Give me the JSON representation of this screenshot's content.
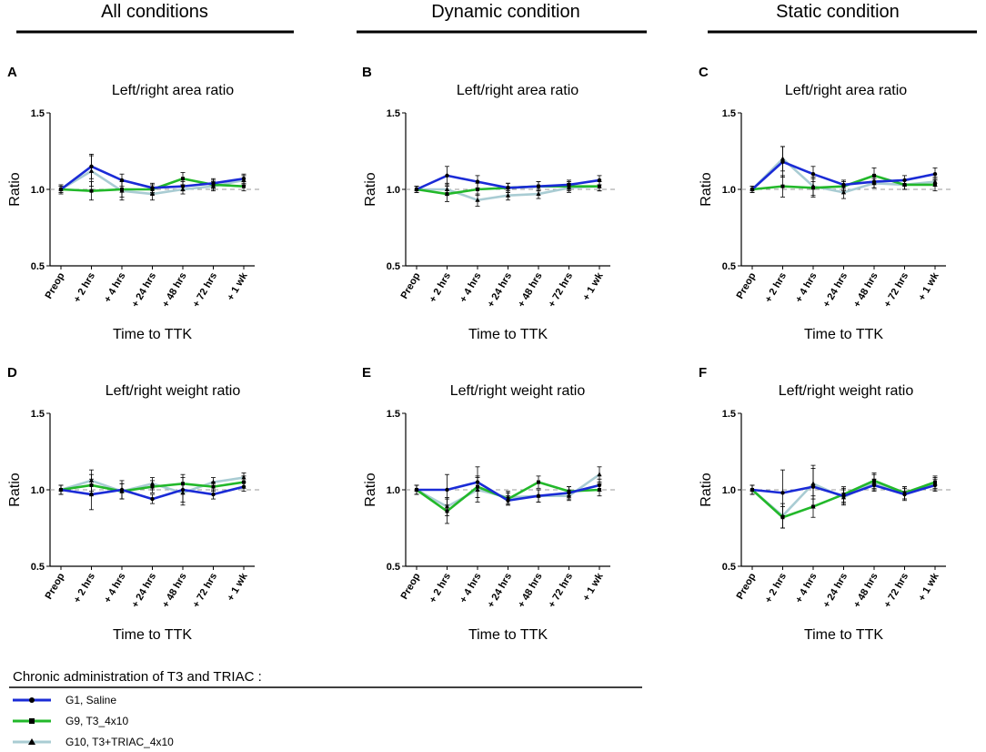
{
  "columns": [
    {
      "title": "All conditions"
    },
    {
      "title": "Dynamic condition"
    },
    {
      "title": "Static condition"
    }
  ],
  "legend": {
    "title": "Chronic administration of T3 and TRIAC :",
    "items": [
      {
        "label": "G1, Saline",
        "color": "#1a2bd6",
        "marker": "circle"
      },
      {
        "label": "G9, T3_4x10",
        "color": "#22b82a",
        "marker": "square"
      },
      {
        "label": "G10, T3+TRIAC_4x10",
        "color": "#a9ccd3",
        "marker": "triangle"
      }
    ]
  },
  "chart_data": [
    {
      "type": "line",
      "panel": "A",
      "title": "Left/right area ratio",
      "xlabel": "Time to TTK",
      "ylabel": "Ratio",
      "categories": [
        "Preop",
        "+ 2 hrs",
        "+ 4 hrs",
        "+ 24 hrs",
        "+ 48 hrs",
        "+ 72 hrs",
        "+ 1 wk"
      ],
      "ylim": [
        0.5,
        1.5
      ],
      "yticks": [
        "0.5",
        "1.0",
        "1.5"
      ],
      "reference_line": 1.0,
      "series": [
        {
          "name": "G1, Saline",
          "values": [
            1.0,
            1.15,
            1.06,
            1.01,
            1.02,
            1.04,
            1.07
          ],
          "errors": [
            0.03,
            0.08,
            0.04,
            0.03,
            0.03,
            0.03,
            0.03
          ]
        },
        {
          "name": "G9, T3_4x10",
          "values": [
            1.0,
            0.99,
            1.0,
            1.0,
            1.07,
            1.03,
            1.02
          ],
          "errors": [
            0.02,
            0.06,
            0.05,
            0.03,
            0.04,
            0.03,
            0.03
          ]
        },
        {
          "name": "G10, T3+TRIAC_4x10",
          "values": [
            1.0,
            1.12,
            0.99,
            0.97,
            1.0,
            1.02,
            1.06
          ],
          "errors": [
            0.02,
            0.1,
            0.06,
            0.04,
            0.03,
            0.03,
            0.03
          ]
        }
      ]
    },
    {
      "type": "line",
      "panel": "B",
      "title": "Left/right area ratio",
      "xlabel": "Time to TTK",
      "ylabel": "Ratio",
      "categories": [
        "Preop",
        "+ 2 hrs",
        "+ 4 hrs",
        "+ 24 hrs",
        "+ 48 hrs",
        "+ 72 hrs",
        "+ 1 wk"
      ],
      "ylim": [
        0.5,
        1.5
      ],
      "yticks": [
        "0.5",
        "1.0",
        "1.5"
      ],
      "reference_line": 1.0,
      "series": [
        {
          "name": "G1, Saline",
          "values": [
            1.0,
            1.09,
            1.05,
            1.01,
            1.02,
            1.03,
            1.06
          ],
          "errors": [
            0.02,
            0.06,
            0.04,
            0.03,
            0.03,
            0.03,
            0.03
          ]
        },
        {
          "name": "G9, T3_4x10",
          "values": [
            1.0,
            0.97,
            1.0,
            1.01,
            1.02,
            1.02,
            1.02
          ],
          "errors": [
            0.02,
            0.05,
            0.04,
            0.03,
            0.03,
            0.03,
            0.03
          ]
        },
        {
          "name": "G10, T3+TRIAC_4x10",
          "values": [
            1.0,
            1.0,
            0.93,
            0.96,
            0.97,
            1.01,
            1.02
          ],
          "errors": [
            0.02,
            0.04,
            0.04,
            0.03,
            0.03,
            0.03,
            0.03
          ]
        }
      ]
    },
    {
      "type": "line",
      "panel": "C",
      "title": "Left/right area ratio",
      "xlabel": "Time to TTK",
      "ylabel": "Ratio",
      "categories": [
        "Preop",
        "+ 2 hrs",
        "+ 4 hrs",
        "+ 24 hrs",
        "+ 48 hrs",
        "+ 72 hrs",
        "+ 1 wk"
      ],
      "ylim": [
        0.5,
        1.5
      ],
      "yticks": [
        "0.5",
        "1.0",
        "1.5"
      ],
      "reference_line": 1.0,
      "series": [
        {
          "name": "G1, Saline",
          "values": [
            1.0,
            1.18,
            1.1,
            1.03,
            1.05,
            1.06,
            1.1
          ],
          "errors": [
            0.02,
            0.1,
            0.05,
            0.03,
            0.04,
            0.03,
            0.04
          ]
        },
        {
          "name": "G9, T3_4x10",
          "values": [
            1.0,
            1.02,
            1.01,
            1.02,
            1.09,
            1.03,
            1.03
          ],
          "errors": [
            0.02,
            0.07,
            0.06,
            0.03,
            0.05,
            0.03,
            0.04
          ]
        },
        {
          "name": "G10, T3+TRIAC_4x10",
          "values": [
            1.0,
            1.2,
            1.02,
            0.98,
            1.04,
            1.03,
            1.05
          ],
          "errors": [
            0.02,
            0.08,
            0.06,
            0.04,
            0.03,
            0.03,
            0.03
          ]
        }
      ]
    },
    {
      "type": "line",
      "panel": "D",
      "title": "Left/right weight ratio",
      "xlabel": "Time to TTK",
      "ylabel": "Ratio",
      "categories": [
        "Preop",
        "+ 2 hrs",
        "+ 4 hrs",
        "+ 24 hrs",
        "+ 48 hrs",
        "+ 72 hrs",
        "+ 1 wk"
      ],
      "ylim": [
        0.5,
        1.5
      ],
      "yticks": [
        "0.5",
        "1.0",
        "1.5"
      ],
      "reference_line": 1.0,
      "series": [
        {
          "name": "G1, Saline",
          "values": [
            1.0,
            0.97,
            1.0,
            0.94,
            1.0,
            0.97,
            1.02
          ],
          "errors": [
            0.03,
            0.1,
            0.06,
            0.03,
            0.1,
            0.03,
            0.03
          ]
        },
        {
          "name": "G9, T3_4x10",
          "values": [
            1.0,
            1.03,
            0.99,
            1.02,
            1.04,
            1.02,
            1.05
          ],
          "errors": [
            0.03,
            0.07,
            0.05,
            0.04,
            0.04,
            0.03,
            0.04
          ]
        },
        {
          "name": "G10, T3+TRIAC_4x10",
          "values": [
            1.0,
            1.06,
            0.99,
            1.04,
            0.98,
            1.05,
            1.08
          ],
          "errors": [
            0.03,
            0.07,
            0.05,
            0.04,
            0.06,
            0.03,
            0.03
          ]
        }
      ]
    },
    {
      "type": "line",
      "panel": "E",
      "title": "Left/right weight ratio",
      "xlabel": "Time to TTK",
      "ylabel": "Ratio",
      "categories": [
        "Preop",
        "+ 2 hrs",
        "+ 4 hrs",
        "+ 24 hrs",
        "+ 48 hrs",
        "+ 72 hrs",
        "+ 1 wk"
      ],
      "ylim": [
        0.5,
        1.5
      ],
      "yticks": [
        "0.5",
        "1.0",
        "1.5"
      ],
      "reference_line": 1.0,
      "series": [
        {
          "name": "G1, Saline",
          "values": [
            1.0,
            1.0,
            1.05,
            0.93,
            0.96,
            0.98,
            1.03
          ],
          "errors": [
            0.03,
            0.1,
            0.1,
            0.03,
            0.04,
            0.04,
            0.04
          ]
        },
        {
          "name": "G9, T3_4x10",
          "values": [
            1.0,
            0.86,
            1.02,
            0.94,
            1.05,
            0.99,
            1.0
          ],
          "errors": [
            0.03,
            0.08,
            0.07,
            0.04,
            0.04,
            0.03,
            0.04
          ]
        },
        {
          "name": "G10, T3+TRIAC_4x10",
          "values": [
            1.0,
            0.89,
            1.0,
            0.95,
            0.96,
            0.96,
            1.1
          ],
          "errors": [
            0.03,
            0.06,
            0.08,
            0.04,
            0.04,
            0.03,
            0.05
          ]
        }
      ]
    },
    {
      "type": "line",
      "panel": "F",
      "title": "Left/right weight ratio",
      "xlabel": "Time to TTK",
      "ylabel": "Ratio",
      "categories": [
        "Preop",
        "+ 2 hrs",
        "+ 4 hrs",
        "+ 24 hrs",
        "+ 48 hrs",
        "+ 72 hrs",
        "+ 1 wk"
      ],
      "ylim": [
        0.5,
        1.5
      ],
      "yticks": [
        "0.5",
        "1.0",
        "1.5"
      ],
      "reference_line": 1.0,
      "series": [
        {
          "name": "G1, Saline",
          "values": [
            1.0,
            0.98,
            1.02,
            0.96,
            1.03,
            0.97,
            1.03
          ],
          "errors": [
            0.03,
            0.15,
            0.14,
            0.05,
            0.04,
            0.04,
            0.04
          ]
        },
        {
          "name": "G9, T3_4x10",
          "values": [
            1.0,
            0.82,
            0.89,
            0.97,
            1.06,
            0.98,
            1.05
          ],
          "errors": [
            0.03,
            0.07,
            0.07,
            0.05,
            0.05,
            0.04,
            0.04
          ]
        },
        {
          "name": "G10, T3+TRIAC_4x10",
          "values": [
            1.0,
            0.83,
            1.04,
            0.95,
            1.05,
            0.98,
            1.04
          ],
          "errors": [
            0.03,
            0.08,
            0.1,
            0.05,
            0.05,
            0.04,
            0.04
          ]
        }
      ]
    }
  ]
}
